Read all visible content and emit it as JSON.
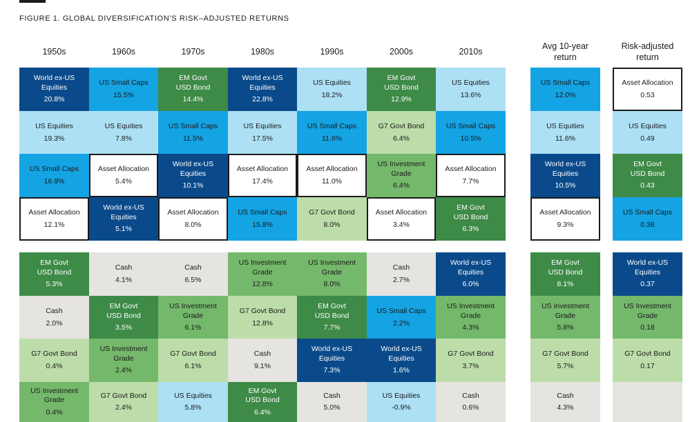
{
  "figure_title": "FIGURE 1. GLOBAL DIVERSIFICATION’S RISK–ADJUSTED RETURNS",
  "headers": [
    "1950s",
    "1960s",
    "1970s",
    "1980s",
    "1990s",
    "2000s",
    "2010s",
    "Avg 10-year\nreturn",
    "Risk-adjusted\nreturn"
  ],
  "asset_colors": {
    "World ex-US Equities": "#0a4a8b",
    "US Small Caps": "#14a3e3",
    "US Equities": "#ade0f5",
    "EM Govt USD Bond": "#3e8a47",
    "US Investment Grade": "#74b86b",
    "G7 Govt Bond": "#bcdda9",
    "Cash": "#e6e4e0",
    "Asset Allocation": "#ffffff"
  },
  "chart_data": {
    "type": "table",
    "title": "FIGURE 1. GLOBAL DIVERSIFICATION’S RISK–ADJUSTED RETURNS",
    "columns": [
      {
        "header": "1950s",
        "cells": [
          {
            "asset": "World ex-US Equities",
            "label": "World ex-US\nEquities",
            "value": "20.8%"
          },
          {
            "asset": "US Equities",
            "label": "US Equities",
            "value": "19.3%"
          },
          {
            "asset": "US Small Caps",
            "label": "US Small Caps",
            "value": "16.9%"
          },
          {
            "asset": "Asset Allocation",
            "label": "Asset Allocation",
            "value": "12.1%"
          },
          {
            "asset": "EM Govt USD Bond",
            "label": "EM Govt\nUSD Bond",
            "value": "5.3%"
          },
          {
            "asset": "Cash",
            "label": "Cash",
            "value": "2.0%"
          },
          {
            "asset": "G7 Govt Bond",
            "label": "G7 Govt Bond",
            "value": "0.4%"
          },
          {
            "asset": "US Investment Grade",
            "label": "US Investment\nGrade",
            "value": "0.4%"
          }
        ]
      },
      {
        "header": "1960s",
        "cells": [
          {
            "asset": "US Small Caps",
            "label": "US Small Caps",
            "value": "15.5%"
          },
          {
            "asset": "US Equities",
            "label": "US Equities",
            "value": "7.8%"
          },
          {
            "asset": "Asset Allocation",
            "label": "Asset Allocation",
            "value": "5.4%"
          },
          {
            "asset": "World ex-US Equities",
            "label": "World ex-US\nEquities",
            "value": "5.1%"
          },
          {
            "asset": "Cash",
            "label": "Cash",
            "value": "4.1%"
          },
          {
            "asset": "EM Govt USD Bond",
            "label": "EM Govt\nUSD Bond",
            "value": "3.5%"
          },
          {
            "asset": "US Investment Grade",
            "label": "US Investment\nGrade",
            "value": "2.4%"
          },
          {
            "asset": "G7 Govt Bond",
            "label": "G7 Govt Bond",
            "value": "2.4%"
          }
        ]
      },
      {
        "header": "1970s",
        "cells": [
          {
            "asset": "EM Govt USD Bond",
            "label": "EM Govt\nUSD Bond",
            "value": "14.4%"
          },
          {
            "asset": "US Small Caps",
            "label": "US Small Caps",
            "value": "11.5%"
          },
          {
            "asset": "World ex-US Equities",
            "label": "World ex-US\nEquities",
            "value": "10.1%"
          },
          {
            "asset": "Asset Allocation",
            "label": "Asset Allocation",
            "value": "8.0%"
          },
          {
            "asset": "Cash",
            "label": "Cash",
            "value": "6.5%"
          },
          {
            "asset": "US Investment Grade",
            "label": "US Investment\nGrade",
            "value": "6.1%"
          },
          {
            "asset": "G7 Govt Bond",
            "label": "G7 Govt Bond",
            "value": "6.1%"
          },
          {
            "asset": "US Equities",
            "label": "US Equities",
            "value": "5.8%"
          }
        ]
      },
      {
        "header": "1980s",
        "cells": [
          {
            "asset": "World ex-US Equities",
            "label": "World ex-US\nEquities",
            "value": "22.8%"
          },
          {
            "asset": "US Equities",
            "label": "US Equities",
            "value": "17.5%"
          },
          {
            "asset": "Asset Allocation",
            "label": "Asset Allocation",
            "value": "17.4%"
          },
          {
            "asset": "US Small Caps",
            "label": "US Small Caps",
            "value": "15.8%"
          },
          {
            "asset": "US Investment Grade",
            "label": "US Investment\nGrade",
            "value": "12.8%"
          },
          {
            "asset": "G7 Govt Bond",
            "label": "G7 Govt Bond",
            "value": "12.8%"
          },
          {
            "asset": "Cash",
            "label": "Cash",
            "value": "9.1%"
          },
          {
            "asset": "EM Govt USD Bond",
            "label": "EM Govt\nUSD Bond",
            "value": "6.4%"
          }
        ]
      },
      {
        "header": "1990s",
        "cells": [
          {
            "asset": "US Equities",
            "label": "US Equities",
            "value": "18.2%"
          },
          {
            "asset": "US Small Caps",
            "label": "US Small Caps",
            "value": "11.6%"
          },
          {
            "asset": "Asset Allocation",
            "label": "Asset Allocation",
            "value": "11.0%"
          },
          {
            "asset": "G7 Govt Bond",
            "label": "G7 Govt Bond",
            "value": "8.0%"
          },
          {
            "asset": "US Investment Grade",
            "label": "US Investment\nGrade",
            "value": "8.0%"
          },
          {
            "asset": "EM Govt USD Bond",
            "label": "EM Govt\nUSD Bond",
            "value": "7.7%"
          },
          {
            "asset": "World ex-US Equities",
            "label": "World ex-US\nEquities",
            "value": "7.3%"
          },
          {
            "asset": "Cash",
            "label": "Cash",
            "value": "5.0%"
          }
        ]
      },
      {
        "header": "2000s",
        "cells": [
          {
            "asset": "EM Govt USD Bond",
            "label": "EM Govt\nUSD Bond",
            "value": "12.9%"
          },
          {
            "asset": "G7 Govt Bond",
            "label": "G7 Govt Bond",
            "value": "6.4%"
          },
          {
            "asset": "US Investment Grade",
            "label": "US Investment\nGrade",
            "value": "6.4%"
          },
          {
            "asset": "Asset Allocation",
            "label": "Asset Allocation",
            "value": "3.4%"
          },
          {
            "asset": "Cash",
            "label": "Cash",
            "value": "2.7%"
          },
          {
            "asset": "US Small Caps",
            "label": "US Small Caps",
            "value": "2.2%"
          },
          {
            "asset": "World ex-US Equities",
            "label": "World ex-US\nEquities",
            "value": "1.6%"
          },
          {
            "asset": "US Equities",
            "label": "US Equities",
            "value": "-0.9%"
          }
        ]
      },
      {
        "header": "2010s",
        "cells": [
          {
            "asset": "US Equities",
            "label": "US Equities",
            "value": "13.6%"
          },
          {
            "asset": "US Small Caps",
            "label": "US Small Caps",
            "value": "10.5%"
          },
          {
            "asset": "Asset Allocation",
            "label": "Asset Allocation",
            "value": "7.7%"
          },
          {
            "asset": "EM Govt USD Bond",
            "label": "EM Govt\nUSD Bond",
            "value": "6.3%"
          },
          {
            "asset": "World ex-US Equities",
            "label": "World ex-US\nEquities",
            "value": "6.0%"
          },
          {
            "asset": "US Investment Grade",
            "label": "US Investment\nGrade",
            "value": "4.3%"
          },
          {
            "asset": "G7 Govt Bond",
            "label": "G7 Govt Bond",
            "value": "3.7%"
          },
          {
            "asset": "Cash",
            "label": "Cash",
            "value": "0.6%"
          }
        ]
      },
      {
        "header": "Avg 10-year\nreturn",
        "cells": [
          {
            "asset": "US Small Caps",
            "label": "US Small Caps",
            "value": "12.0%"
          },
          {
            "asset": "US Equities",
            "label": "US Equities",
            "value": "11.6%"
          },
          {
            "asset": "World ex-US Equities",
            "label": "World ex-US\nEquities",
            "value": "10.5%"
          },
          {
            "asset": "Asset Allocation",
            "label": "Asset Allocation",
            "value": "9.3%"
          },
          {
            "asset": "EM Govt USD Bond",
            "label": "EM Govt\nUSD Bond",
            "value": "8.1%"
          },
          {
            "asset": "US Investment Grade",
            "label": "US Investment\nGrade",
            "value": "5.8%"
          },
          {
            "asset": "G7 Govt Bond",
            "label": "G7 Govt Bond",
            "value": "5.7%"
          },
          {
            "asset": "Cash",
            "label": "Cash",
            "value": "4.3%"
          }
        ]
      },
      {
        "header": "Risk-adjusted\nreturn",
        "cells": [
          {
            "asset": "Asset Allocation",
            "label": "Asset Allocation",
            "value": "0.53"
          },
          {
            "asset": "US Equities",
            "label": "US Equities",
            "value": "0.49"
          },
          {
            "asset": "EM Govt USD Bond",
            "label": "EM Govt\nUSD Bond",
            "value": "0.43"
          },
          {
            "asset": "US Small Caps",
            "label": "US Small Caps",
            "value": "0.38"
          },
          {
            "asset": "World ex-US Equities",
            "label": "World ex-US\nEquities",
            "value": "0.37"
          },
          {
            "asset": "US Investment Grade",
            "label": "US Investment\nGrade",
            "value": "0.18"
          },
          {
            "asset": "G7 Govt Bond",
            "label": "G7 Govt Bond",
            "value": "0.17"
          },
          {
            "asset": "Cash",
            "label": "",
            "value": ""
          }
        ]
      }
    ]
  }
}
